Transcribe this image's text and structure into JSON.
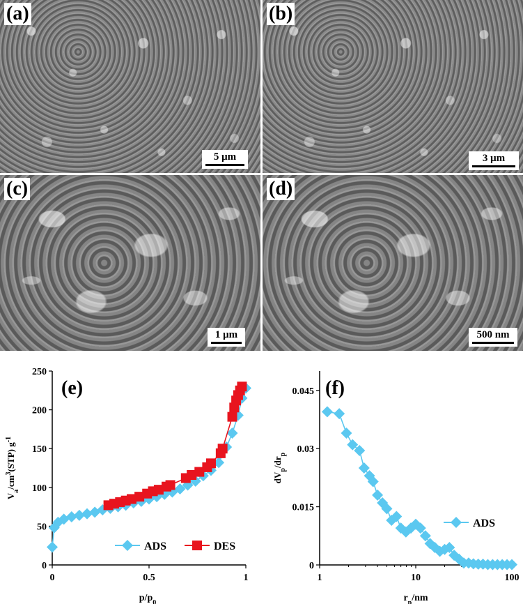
{
  "panels": {
    "a": {
      "label": "(a)",
      "scale": "5 μm"
    },
    "b": {
      "label": "(b)",
      "scale": "3 μm"
    },
    "c": {
      "label": "(c)",
      "scale": "1 μm"
    },
    "d": {
      "label": "(d)",
      "scale": "500 nm"
    }
  },
  "chart_data": [
    {
      "type": "line",
      "panel_label": "(e)",
      "xlabel": "p/p0",
      "ylabel": "Va/cm3(STP) g-1",
      "xlim": [
        0,
        1
      ],
      "ylim": [
        0,
        250
      ],
      "xticks": [
        "0",
        "0.5",
        "1"
      ],
      "yticks": [
        "0",
        "50",
        "100",
        "150",
        "200",
        "250"
      ],
      "legend_position": "bottom-right",
      "series": [
        {
          "name": "ADS",
          "color": "#5bc8f0",
          "marker": "diamond",
          "x": [
            0.0,
            0.01,
            0.03,
            0.06,
            0.1,
            0.14,
            0.18,
            0.22,
            0.26,
            0.3,
            0.34,
            0.38,
            0.42,
            0.46,
            0.5,
            0.54,
            0.58,
            0.62,
            0.66,
            0.7,
            0.74,
            0.78,
            0.82,
            0.86,
            0.9,
            0.93,
            0.96,
            0.98,
            1.0
          ],
          "y": [
            23,
            48,
            55,
            59,
            62,
            64,
            66,
            68,
            71,
            73,
            75,
            77,
            80,
            82,
            85,
            88,
            91,
            94,
            98,
            103,
            108,
            115,
            122,
            132,
            152,
            170,
            193,
            215,
            228
          ]
        },
        {
          "name": "DES",
          "color": "#e8141e",
          "marker": "square",
          "x": [
            0.29,
            0.32,
            0.35,
            0.38,
            0.41,
            0.45,
            0.49,
            0.52,
            0.55,
            0.59,
            0.61,
            0.69,
            0.72,
            0.76,
            0.8,
            0.82,
            0.87,
            0.88,
            0.93,
            0.94,
            0.95,
            0.96,
            0.97,
            0.98
          ],
          "y": [
            77,
            79,
            81,
            83,
            85,
            88,
            92,
            95,
            97,
            101,
            103,
            112,
            116,
            120,
            126,
            131,
            144,
            150,
            191,
            203,
            212,
            219,
            225,
            230
          ]
        }
      ]
    },
    {
      "type": "line",
      "panel_label": "(f)",
      "xlabel": "rp/nm",
      "ylabel": "dVp/drp",
      "xscale": "log",
      "xlim": [
        1,
        100
      ],
      "ylim": [
        0,
        0.05
      ],
      "xticks": [
        "1",
        "10",
        "100"
      ],
      "yticks": [
        "0",
        "0.015",
        "0.03",
        "0.045"
      ],
      "legend_position": "right",
      "series": [
        {
          "name": "ADS",
          "color": "#5bc8f0",
          "marker": "diamond",
          "x": [
            1.2,
            1.6,
            1.9,
            2.2,
            2.6,
            2.9,
            3.3,
            3.6,
            4.0,
            4.5,
            5.0,
            5.6,
            6.3,
            7.0,
            7.9,
            8.9,
            10.0,
            11.2,
            12.6,
            14.1,
            15.8,
            17.8,
            20.0,
            22.4,
            25.1,
            28.2,
            31.6,
            35.5,
            39.8,
            44.7,
            50.1,
            56.2,
            63.1,
            70.8,
            79.4,
            89.1,
            100
          ],
          "y": [
            0.0395,
            0.039,
            0.034,
            0.031,
            0.0295,
            0.025,
            0.023,
            0.0215,
            0.018,
            0.016,
            0.0145,
            0.0115,
            0.0125,
            0.0095,
            0.0085,
            0.0095,
            0.0105,
            0.0095,
            0.0075,
            0.0055,
            0.0045,
            0.0035,
            0.004,
            0.0045,
            0.0025,
            0.0015,
            0.0005,
            0.0005,
            0.0003,
            0.0002,
            0.0002,
            0.0001,
            0.0001,
            0.0001,
            0.0001,
            0.0001,
            0.0001
          ]
        }
      ]
    }
  ]
}
